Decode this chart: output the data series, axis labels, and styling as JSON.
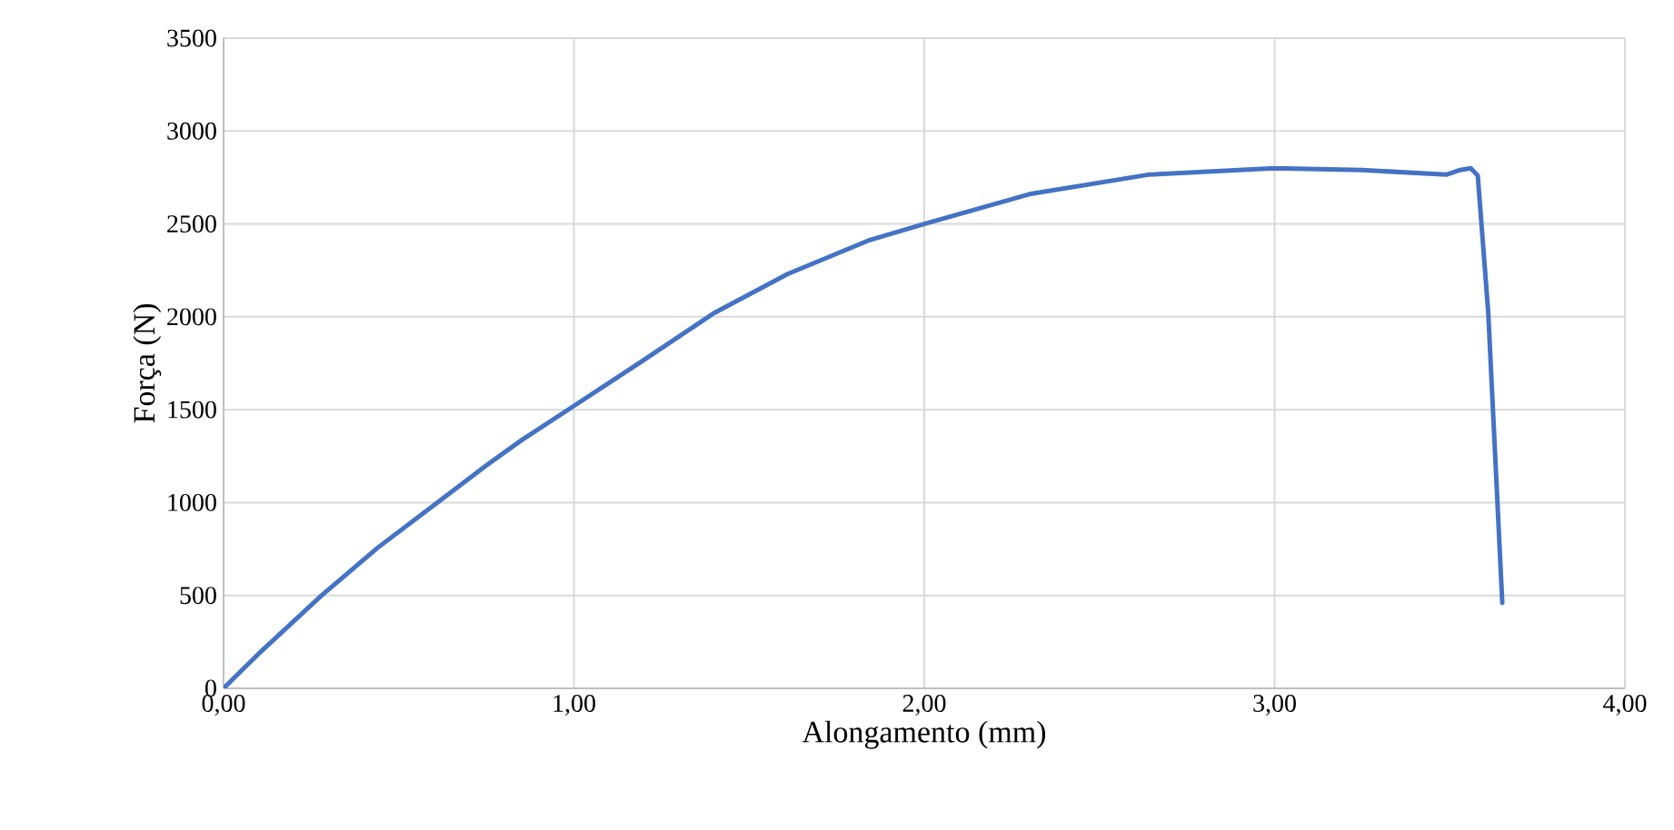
{
  "chart_data": {
    "type": "line",
    "xlabel": "Alongamento (mm)",
    "ylabel": "Força (N)",
    "xlim": [
      0,
      4
    ],
    "xticks": [
      {
        "value": 0,
        "label": "0,00"
      },
      {
        "value": 1,
        "label": "1,00"
      },
      {
        "value": 2,
        "label": "2,00"
      },
      {
        "value": 3,
        "label": "3,00"
      },
      {
        "value": 4,
        "label": "4,00"
      }
    ],
    "ylim": [
      0,
      3500
    ],
    "yticks": [
      0,
      500,
      1000,
      1500,
      2000,
      2500,
      3000,
      3500
    ],
    "grid": true,
    "marker": "none",
    "line_style": "solid",
    "series": [
      {
        "color": "#4472c4",
        "x": [
          0,
          0.1,
          0.28,
          0.44,
          0.61,
          0.75,
          0.85,
          1.0,
          1.19,
          1.4,
          1.61,
          1.84,
          2.0,
          2.3,
          2.64,
          3.0,
          3.25,
          3.49,
          3.53,
          3.56,
          3.58,
          3.61,
          3.65
        ],
        "values": [
          0,
          186,
          500,
          757,
          1000,
          1200,
          1335,
          1520,
          1755,
          2020,
          2230,
          2410,
          2500,
          2660,
          2765,
          2800,
          2790,
          2765,
          2790,
          2800,
          2760,
          2020,
          460
        ]
      }
    ]
  }
}
